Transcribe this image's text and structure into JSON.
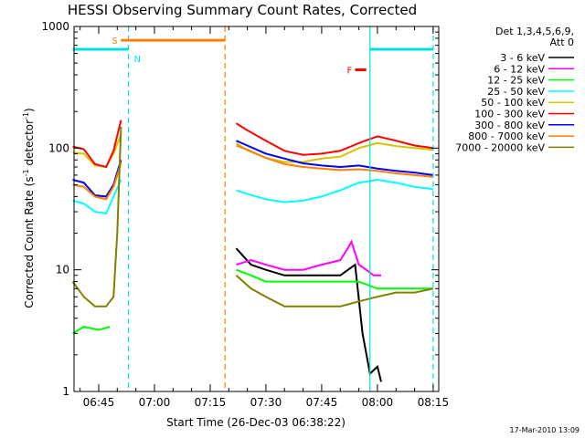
{
  "chart_data": {
    "type": "line",
    "title": "HESSI Observing Summary Count Rates, Corrected",
    "xlabel": "Start Time (26-Dec-03 06:38:22)",
    "ylabel_main": "Corrected Count Rate (s",
    "ylabel_sup1": "-1",
    "ylabel_mid": " detector",
    "ylabel_sup2": "-1",
    "ylabel_end": ")",
    "yscale": "log",
    "ylim": [
      1,
      1000
    ],
    "xlim": [
      "06:38:22",
      "08:16:30"
    ],
    "grid": false,
    "legend_position": "right",
    "legend_header": [
      "Det 1,3,4,5,6,9,",
      "Att 0"
    ],
    "footer_timestamp": "17-Mar-2010 13:09",
    "x_ticks": [
      {
        "t": "06:45",
        "label": "06:45"
      },
      {
        "t": "07:00",
        "label": "07:00"
      },
      {
        "t": "07:15",
        "label": "07:15"
      },
      {
        "t": "07:30",
        "label": "07:30"
      },
      {
        "t": "07:45",
        "label": "07:45"
      },
      {
        "t": "08:00",
        "label": "08:00"
      },
      {
        "t": "08:15",
        "label": "08:15"
      }
    ],
    "y_ticks": [
      {
        "v": 1,
        "label": "1"
      },
      {
        "v": 10,
        "label": "10"
      },
      {
        "v": 100,
        "label": "100"
      },
      {
        "v": 1000,
        "label": "1000"
      }
    ],
    "series": [
      {
        "name": "3 - 6 keV",
        "color": "#000000",
        "segments": [
          [
            [
              "07:22",
              15
            ],
            [
              "07:26",
              11
            ],
            [
              "07:30",
              10
            ],
            [
              "07:35",
              9
            ],
            [
              "07:40",
              9
            ],
            [
              "07:45",
              9
            ],
            [
              "07:50",
              9
            ],
            [
              "07:54",
              11
            ],
            [
              "07:56",
              3
            ],
            [
              "07:58",
              1.4
            ],
            [
              "08:00",
              1.6
            ],
            [
              "08:01",
              1.2
            ]
          ]
        ]
      },
      {
        "name": "6 - 12 keV",
        "color": "#ff00ff",
        "segments": [
          [
            [
              "07:22",
              11
            ],
            [
              "07:26",
              12
            ],
            [
              "07:30",
              11
            ],
            [
              "07:35",
              10
            ],
            [
              "07:40",
              10
            ],
            [
              "07:45",
              11
            ],
            [
              "07:50",
              12
            ],
            [
              "07:52",
              15
            ],
            [
              "07:53",
              17
            ],
            [
              "07:55",
              11
            ],
            [
              "07:57",
              10
            ],
            [
              "07:59",
              9
            ],
            [
              "08:01",
              9
            ]
          ]
        ]
      },
      {
        "name": "12 - 25 keV",
        "color": "#00ff00",
        "segments": [
          [
            [
              "06:38",
              3
            ],
            [
              "06:41",
              3.4
            ],
            [
              "06:45",
              3.2
            ],
            [
              "06:48",
              3.4
            ]
          ],
          [
            [
              "07:22",
              10
            ],
            [
              "07:26",
              9
            ],
            [
              "07:30",
              8
            ],
            [
              "07:35",
              8
            ],
            [
              "07:40",
              8
            ],
            [
              "07:45",
              8
            ],
            [
              "07:50",
              8
            ],
            [
              "07:55",
              8
            ],
            [
              "08:00",
              7
            ],
            [
              "08:05",
              7
            ],
            [
              "08:10",
              7
            ],
            [
              "08:15",
              7
            ]
          ]
        ]
      },
      {
        "name": "25 - 50 keV",
        "color": "#00ffff",
        "segments": [
          [
            [
              "06:38",
              37
            ],
            [
              "06:41",
              35
            ],
            [
              "06:44",
              30
            ],
            [
              "06:47",
              29
            ],
            [
              "06:49",
              40
            ],
            [
              "06:51",
              55
            ]
          ],
          [
            [
              "07:22",
              45
            ],
            [
              "07:25",
              42
            ],
            [
              "07:30",
              38
            ],
            [
              "07:35",
              36
            ],
            [
              "07:40",
              37
            ],
            [
              "07:45",
              40
            ],
            [
              "07:50",
              45
            ],
            [
              "07:55",
              52
            ],
            [
              "08:00",
              55
            ],
            [
              "08:05",
              52
            ],
            [
              "08:10",
              48
            ],
            [
              "08:15",
              46
            ]
          ]
        ]
      },
      {
        "name": "50 - 100 keV",
        "color": "#d4c400",
        "segments": [
          [
            [
              "06:38",
              92
            ],
            [
              "06:41",
              90
            ],
            [
              "06:44",
              72
            ],
            [
              "06:47",
              70
            ],
            [
              "06:49",
              90
            ],
            [
              "06:51",
              130
            ]
          ],
          [
            [
              "07:22",
              110
            ],
            [
              "07:25",
              96
            ],
            [
              "07:30",
              83
            ],
            [
              "07:35",
              77
            ],
            [
              "07:40",
              77
            ],
            [
              "07:45",
              82
            ],
            [
              "07:50",
              85
            ],
            [
              "07:55",
              100
            ],
            [
              "08:00",
              110
            ],
            [
              "08:05",
              104
            ],
            [
              "08:10",
              100
            ],
            [
              "08:15",
              97
            ]
          ]
        ]
      },
      {
        "name": "100 - 300 keV",
        "color": "#ff0000",
        "segments": [
          [
            [
              "06:38",
              103
            ],
            [
              "06:41",
              98
            ],
            [
              "06:44",
              74
            ],
            [
              "06:47",
              70
            ],
            [
              "06:49",
              95
            ],
            [
              "06:51",
              170
            ]
          ],
          [
            [
              "07:22",
              160
            ],
            [
              "07:25",
              140
            ],
            [
              "07:30",
              115
            ],
            [
              "07:35",
              95
            ],
            [
              "07:40",
              88
            ],
            [
              "07:45",
              90
            ],
            [
              "07:50",
              95
            ],
            [
              "07:55",
              110
            ],
            [
              "08:00",
              125
            ],
            [
              "08:05",
              115
            ],
            [
              "08:10",
              105
            ],
            [
              "08:15",
              100
            ]
          ]
        ]
      },
      {
        "name": "300 - 800 keV",
        "color": "#0000ff",
        "segments": [
          [
            [
              "06:38",
              55
            ],
            [
              "06:41",
              52
            ],
            [
              "06:44",
              41
            ],
            [
              "06:47",
              40
            ],
            [
              "06:49",
              50
            ],
            [
              "06:51",
              80
            ]
          ],
          [
            [
              "07:22",
              115
            ],
            [
              "07:25",
              105
            ],
            [
              "07:30",
              90
            ],
            [
              "07:35",
              82
            ],
            [
              "07:40",
              75
            ],
            [
              "07:45",
              72
            ],
            [
              "07:50",
              70
            ],
            [
              "07:55",
              72
            ],
            [
              "08:00",
              68
            ],
            [
              "08:05",
              65
            ],
            [
              "08:10",
              63
            ],
            [
              "08:15",
              60
            ]
          ]
        ]
      },
      {
        "name": "800 - 7000 keV",
        "color": "#ff8000",
        "segments": [
          [
            [
              "06:38",
              50
            ],
            [
              "06:41",
              48
            ],
            [
              "06:44",
              40
            ],
            [
              "06:47",
              38
            ],
            [
              "06:49",
              48
            ],
            [
              "06:51",
              75
            ]
          ],
          [
            [
              "07:22",
              105
            ],
            [
              "07:25",
              97
            ],
            [
              "07:30",
              83
            ],
            [
              "07:35",
              74
            ],
            [
              "07:40",
              70
            ],
            [
              "07:45",
              68
            ],
            [
              "07:50",
              66
            ],
            [
              "07:55",
              67
            ],
            [
              "08:00",
              65
            ],
            [
              "08:05",
              62
            ],
            [
              "08:10",
              60
            ],
            [
              "08:15",
              58
            ]
          ]
        ]
      },
      {
        "name": "7000 - 20000 keV",
        "color": "#808000",
        "segments": [
          [
            [
              "06:38",
              8
            ],
            [
              "06:41",
              6
            ],
            [
              "06:44",
              5
            ],
            [
              "06:47",
              5
            ],
            [
              "06:49",
              6
            ],
            [
              "06:50",
              20
            ],
            [
              "06:51",
              150
            ]
          ],
          [
            [
              "07:22",
              9
            ],
            [
              "07:26",
              7
            ],
            [
              "07:30",
              6
            ],
            [
              "07:35",
              5
            ],
            [
              "07:40",
              5
            ],
            [
              "07:45",
              5
            ],
            [
              "07:50",
              5
            ],
            [
              "07:55",
              5.5
            ],
            [
              "08:00",
              6
            ],
            [
              "08:05",
              6.5
            ],
            [
              "08:10",
              6.5
            ],
            [
              "08:15",
              7
            ]
          ]
        ]
      }
    ],
    "markers": [
      {
        "label": "S",
        "kind": "bar",
        "color": "#ff8000",
        "t_start": "06:51",
        "t_end": "07:19",
        "y": 770
      },
      {
        "label": "N",
        "kind": "bar",
        "color": "#00e0e0",
        "t_start": "06:38",
        "t_end": "06:53",
        "y": 650
      },
      {
        "label": "",
        "kind": "bar",
        "color": "#00e0e0",
        "t_start": "07:58",
        "t_end": "08:15",
        "y": 650
      },
      {
        "label": "F",
        "kind": "bar",
        "color": "#ff0000",
        "t_start": "07:54",
        "t_end": "07:57",
        "y": 440
      }
    ],
    "vertical_lines": [
      {
        "t": "06:53",
        "color": "#00e0e0",
        "dashed": true
      },
      {
        "t": "07:19",
        "color": "#ff8000",
        "dashed": true
      },
      {
        "t": "07:58",
        "color": "#00e0e0",
        "dashed": false
      },
      {
        "t": "08:15",
        "color": "#00e0e0",
        "dashed": true
      }
    ]
  }
}
